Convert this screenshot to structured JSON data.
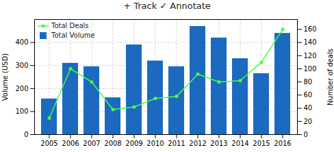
{
  "chart_data": {
    "type": "bar",
    "title": "+ Track  ✓ Annotate",
    "categories": [
      "2005",
      "2006",
      "2007",
      "2008",
      "2009",
      "2010",
      "2011",
      "2012",
      "2013",
      "2014",
      "2015",
      "2016"
    ],
    "series": [
      {
        "name": "Total Deals",
        "type": "line",
        "axis": "y2",
        "color": "#44ff44",
        "marker": "circle",
        "values": [
          25,
          100,
          80,
          38,
          42,
          55,
          58,
          92,
          80,
          82,
          110,
          160
        ]
      },
      {
        "name": "Total Volume",
        "type": "bar",
        "color": "#1b6abf",
        "values": [
          155,
          310,
          295,
          160,
          390,
          320,
          295,
          470,
          420,
          330,
          265,
          440
        ]
      }
    ],
    "ylabel": "Volume (USD)",
    "y2label": "Number of deals",
    "ylim": [
      0,
      500
    ],
    "yticks": [
      0,
      100,
      200,
      300,
      400
    ],
    "y2lim": [
      0,
      175
    ],
    "y2ticks": [
      0,
      20,
      40,
      60,
      80,
      100,
      120,
      140,
      160
    ],
    "grid": true,
    "legend": "upper left"
  }
}
